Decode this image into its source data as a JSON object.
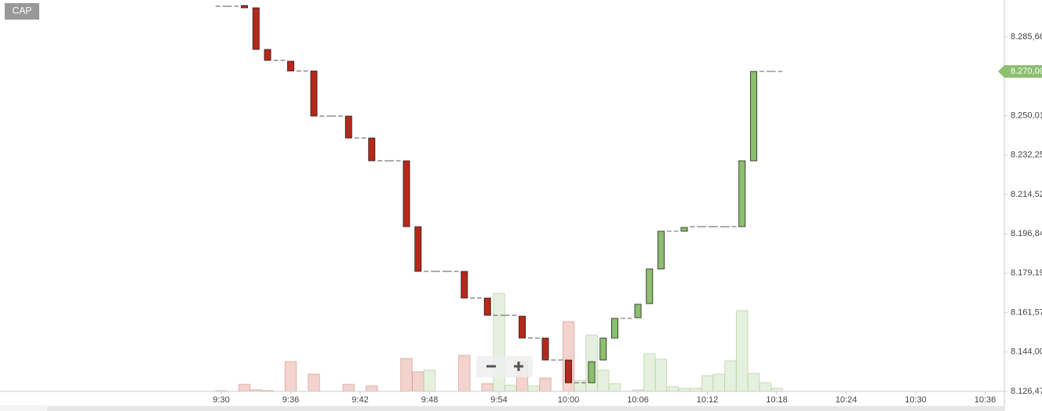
{
  "chart_data": {
    "type": "candlestick",
    "symbol": "CAP",
    "log_scale": true,
    "ylim": [
      8126.47,
      8302.39
    ],
    "yticks": [
      {
        "value": 8126.47,
        "label": "8.126,47"
      },
      {
        "value": 8144.0,
        "label": "8.144,00"
      },
      {
        "value": 8161.57,
        "label": "8.161,57"
      },
      {
        "value": 8179.19,
        "label": "8.179,19"
      },
      {
        "value": 8196.84,
        "label": "8.196,84"
      },
      {
        "value": 8214.52,
        "label": "8.214,52"
      },
      {
        "value": 8232.25,
        "label": "8.232,25"
      },
      {
        "value": 8250.01,
        "label": "8.250,01"
      },
      {
        "value": 8285.66,
        "label": "8.285,66"
      }
    ],
    "xlim": [
      550.88,
      637.66
    ],
    "xticks": [
      {
        "value": 570,
        "label": "9:30"
      },
      {
        "value": 576,
        "label": "9:36"
      },
      {
        "value": 582,
        "label": "9:42"
      },
      {
        "value": 588,
        "label": "9:48"
      },
      {
        "value": 594,
        "label": "9:54"
      },
      {
        "value": 600,
        "label": "10:00"
      },
      {
        "value": 606,
        "label": "10:06"
      },
      {
        "value": 612,
        "label": "10:12"
      },
      {
        "value": 618,
        "label": "10:18"
      },
      {
        "value": 624,
        "label": "10:24"
      },
      {
        "value": 630,
        "label": "10:30"
      },
      {
        "value": 636,
        "label": "10:36"
      }
    ],
    "last_price": {
      "value": 8270.0,
      "label": "8.270,00"
    },
    "up_color": "#8cbf6e",
    "down_color": "#b5291a",
    "x": [
      570,
      571,
      572,
      573,
      574,
      575,
      576,
      577,
      578,
      579,
      580,
      581,
      582,
      583,
      584,
      585,
      586,
      587,
      588,
      589,
      590,
      591,
      592,
      593,
      594,
      595,
      596,
      597,
      598,
      599,
      600,
      601,
      602,
      603,
      604,
      605,
      606,
      607,
      608,
      609,
      610,
      611,
      612,
      613,
      614,
      615,
      616,
      617,
      618
    ],
    "open": [
      8299.55,
      8299.55,
      8299.9,
      8298.84,
      8279.97,
      8275.0,
      8274.64,
      8270.2,
      8270.2,
      8249.82,
      8249.82,
      8249.82,
      8239.92,
      8239.92,
      8229.66,
      8229.66,
      8229.66,
      8200.05,
      8180.01,
      8180.01,
      8180.01,
      8180.01,
      8168.08,
      8168.08,
      8160.37,
      8160.37,
      8160.0,
      8150.22,
      8150.22,
      8140.43,
      8140.43,
      8130.31,
      8130.31,
      8140.43,
      8150.22,
      8159.0,
      8159.3,
      8165.6,
      8181.1,
      8198.0,
      8198.0,
      8200.05,
      8200.05,
      8200.05,
      8200.05,
      8200.05,
      8229.66,
      8270.0,
      8270.0
    ],
    "close": [
      8299.55,
      8299.55,
      8298.84,
      8279.97,
      8275.0,
      8275.0,
      8270.2,
      8270.2,
      8249.82,
      8249.82,
      8249.82,
      8239.92,
      8239.92,
      8229.66,
      8229.66,
      8229.66,
      8200.05,
      8180.01,
      8180.01,
      8180.01,
      8180.01,
      8168.08,
      8168.08,
      8160.37,
      8160.37,
      8160.37,
      8150.22,
      8150.22,
      8140.43,
      8140.43,
      8130.31,
      8130.31,
      8139.7,
      8150.22,
      8159.0,
      8159.0,
      8165.3,
      8181.1,
      8198.0,
      8198.0,
      8199.7,
      8200.05,
      8200.05,
      8200.05,
      8200.05,
      8229.66,
      8270.0,
      8270.0,
      8270.0
    ],
    "volume": [
      1,
      0,
      9,
      2,
      1,
      0,
      38,
      0,
      22,
      0,
      0,
      9,
      0,
      7,
      0,
      0,
      42,
      25,
      27,
      0,
      0,
      46,
      0,
      10,
      125,
      8,
      38,
      7,
      17,
      0,
      89,
      14,
      72,
      27,
      10,
      0,
      2,
      48,
      41,
      6,
      4,
      4,
      20,
      22,
      39,
      103,
      23,
      11,
      4
    ]
  }
}
